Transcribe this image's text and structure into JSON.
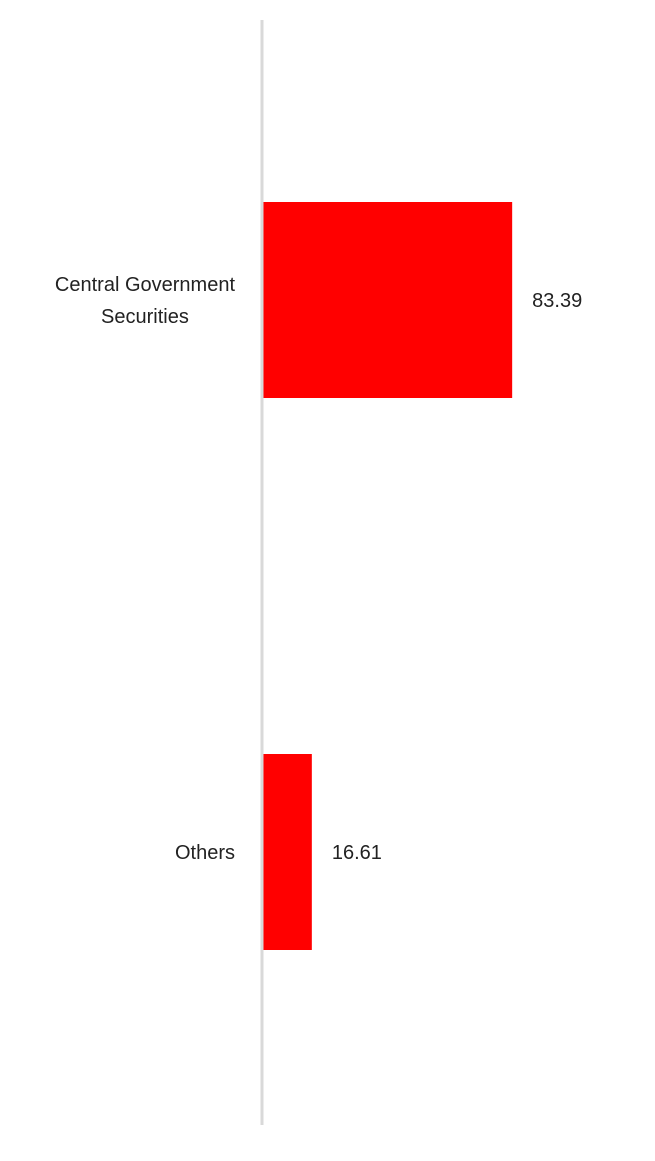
{
  "chart_data": {
    "type": "bar",
    "orientation": "horizontal",
    "categories": [
      [
        "Central Government",
        "Securities"
      ],
      [
        "Others"
      ]
    ],
    "values": [
      83.39,
      16.61
    ],
    "value_labels": [
      "83.39",
      "16.61"
    ],
    "xlim": [
      0,
      100
    ],
    "bar_color": "#ff0000",
    "axis_color": "#d9d9d9",
    "grid": false,
    "legend": "none"
  }
}
